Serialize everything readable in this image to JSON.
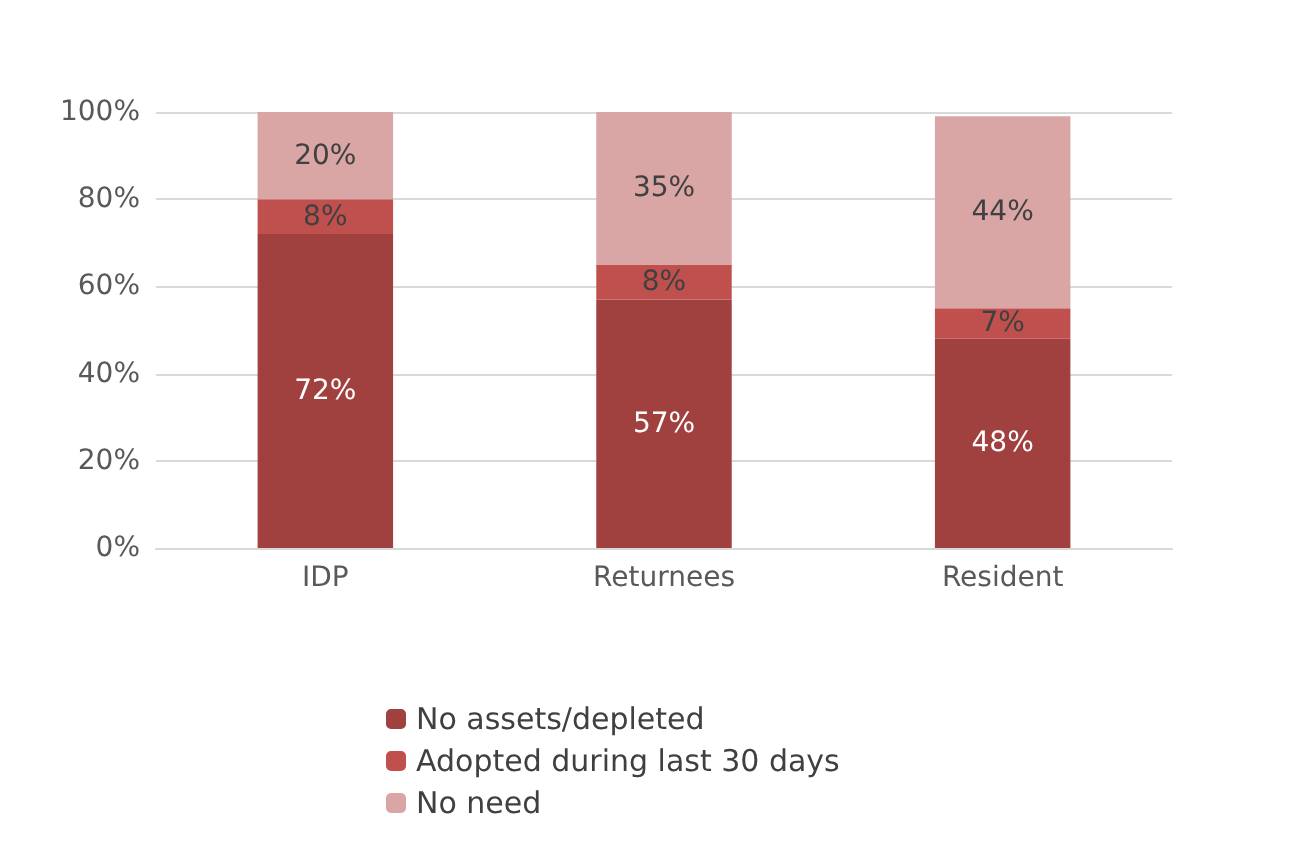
{
  "chart_data": {
    "type": "bar",
    "stacked": true,
    "categories": [
      "IDP",
      "Returnees",
      "Resident"
    ],
    "series": [
      {
        "name": "No assets/depleted",
        "color": "#a0403f",
        "values": [
          72,
          57,
          48
        ],
        "value_labels": [
          "72%",
          "57%",
          "48%"
        ]
      },
      {
        "name": "Adopted during last 30 days",
        "color": "#c0504d",
        "values": [
          8,
          8,
          7
        ],
        "value_labels": [
          "8%",
          "8%",
          "7%"
        ]
      },
      {
        "name": "No need",
        "color": "#d9a5a5",
        "values": [
          20,
          35,
          44
        ],
        "value_labels": [
          "20%",
          "35%",
          "44%"
        ]
      }
    ],
    "ylim": [
      0,
      100
    ],
    "yticks": [
      {
        "value": 0,
        "label": "0%"
      },
      {
        "value": 20,
        "label": "20%"
      },
      {
        "value": 40,
        "label": "40%"
      },
      {
        "value": 60,
        "label": "60%"
      },
      {
        "value": 80,
        "label": "80%"
      },
      {
        "value": 100,
        "label": "100%"
      }
    ],
    "grid": "y",
    "legend": "bottom"
  }
}
